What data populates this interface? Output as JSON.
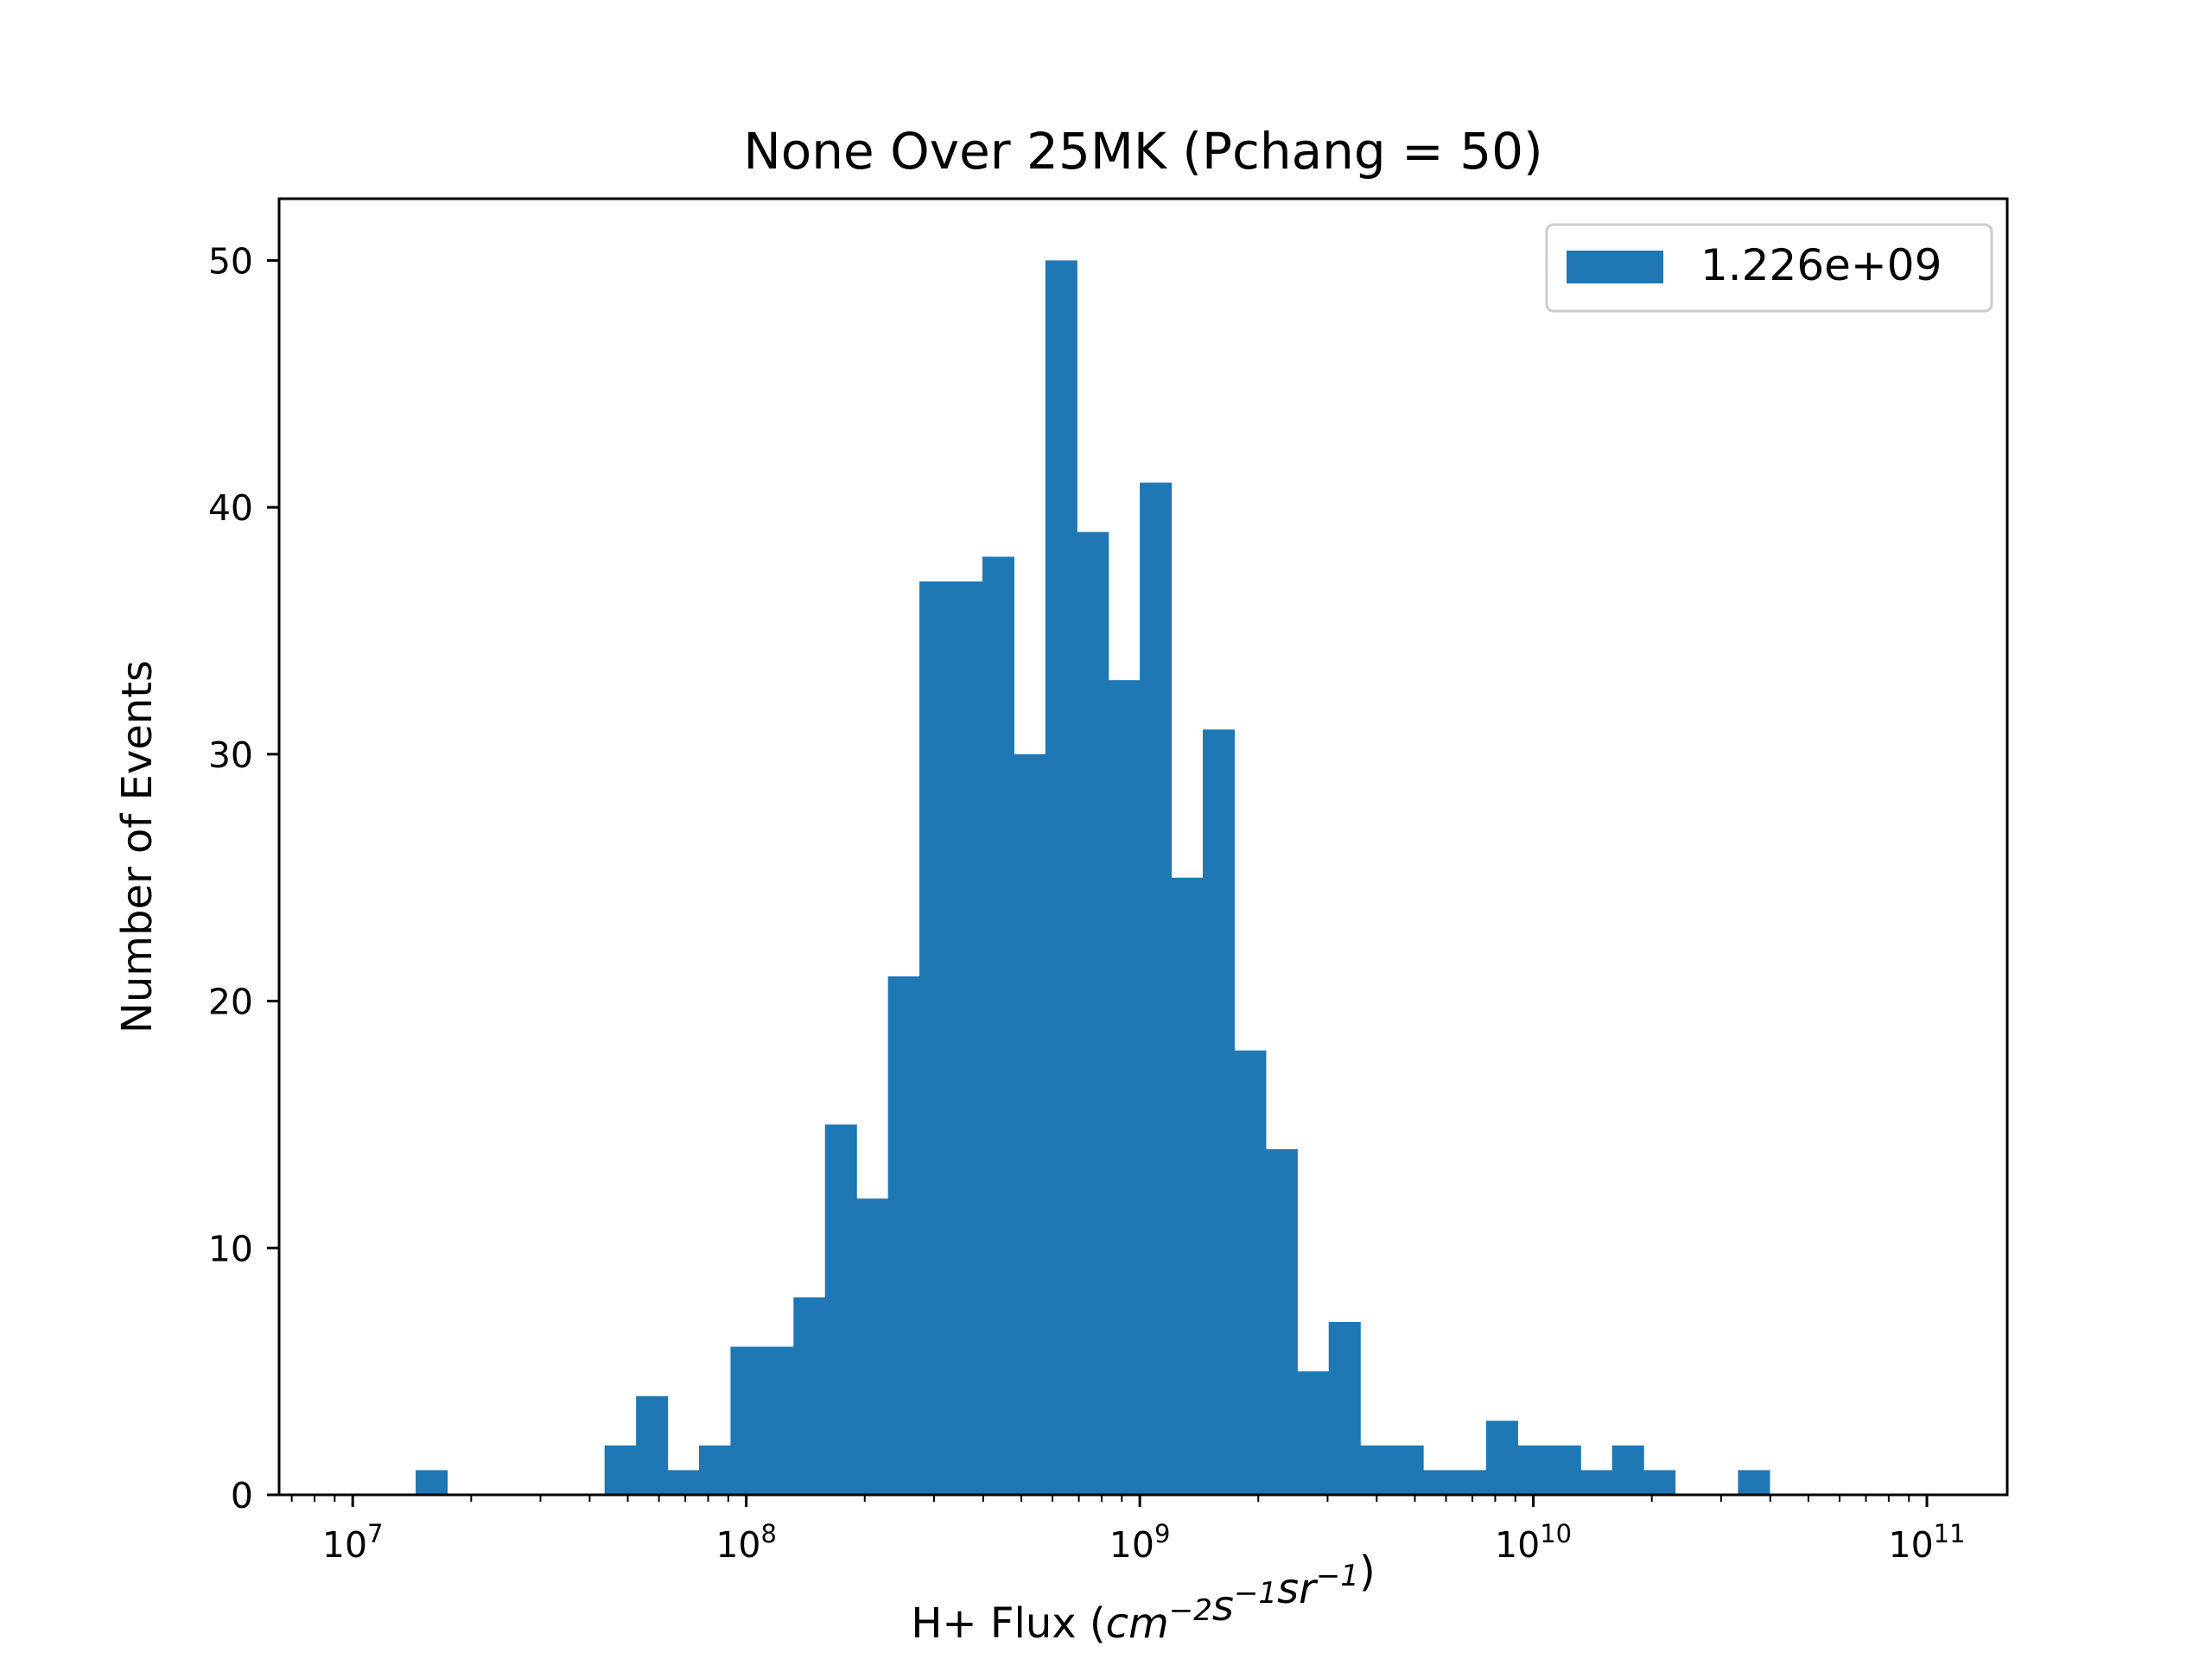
{
  "chart_data": {
    "type": "bar",
    "title": "None Over 25MK  (Pchang = 50)",
    "xlabel": {
      "prefix": "H+ Flux (",
      "terms": [
        {
          "base": "cm",
          "exp": "−2"
        },
        {
          "base": "s",
          "exp": "−1"
        },
        {
          "base": "sr",
          "exp": "−1"
        }
      ],
      "suffix": ")"
    },
    "ylabel": "Number of Events",
    "x_scale": "log",
    "xlim": [
      6500000,
      160000000000
    ],
    "ylim": [
      0,
      52.5
    ],
    "x_ticks": [
      {
        "value": 10000000,
        "base": "10",
        "exp": "7"
      },
      {
        "value": 100000000,
        "base": "10",
        "exp": "8"
      },
      {
        "value": 1000000000,
        "base": "10",
        "exp": "9"
      },
      {
        "value": 10000000000,
        "base": "10",
        "exp": "10"
      },
      {
        "value": 100000000000,
        "base": "10",
        "exp": "11"
      }
    ],
    "y_ticks": [
      0,
      10,
      20,
      30,
      40,
      50
    ],
    "y_tick_labels": [
      "0",
      "10",
      "20",
      "30",
      "40",
      "50"
    ],
    "bin_edges": [
      10000000,
      12022644,
      14454398,
      17378008,
      20892961,
      25118864,
      30199517,
      36307805,
      43651583,
      52480746,
      63095734,
      75857758,
      91201084,
      109647820,
      131825674,
      158489319,
      190546072,
      229086765,
      275422870,
      331131121,
      398107171,
      478630092,
      575439937,
      691830971,
      831763771,
      1000000000,
      1202264435,
      1445439771,
      1737800829,
      2089296131,
      2511886432,
      3019951720,
      3630780548,
      4365158322,
      5248074602,
      6309573445,
      7585775750,
      9120108394,
      10964781961,
      13182567386,
      15848931925,
      19054607180,
      22908676528,
      27542287033,
      33113112148,
      39810717055,
      47863009232,
      57543993733,
      69183097092,
      83176377110,
      100000000000
    ],
    "counts": [
      0,
      0,
      1,
      0,
      0,
      0,
      0,
      0,
      2,
      4,
      1,
      2,
      6,
      6,
      8,
      15,
      12,
      21,
      37,
      37,
      38,
      30,
      50,
      39,
      33,
      41,
      25,
      31,
      18,
      14,
      5,
      7,
      2,
      2,
      1,
      1,
      3,
      2,
      2,
      1,
      2,
      1,
      0,
      0,
      1,
      0,
      0,
      0,
      0,
      0
    ],
    "series": [
      {
        "name": "1.226e+09",
        "color": "#1f77b4"
      }
    ],
    "legend_position": "top-right",
    "grid": false
  }
}
